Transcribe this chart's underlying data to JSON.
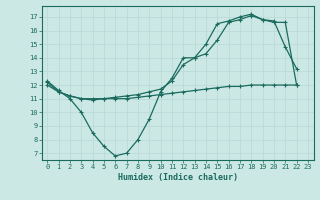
{
  "xlabel": "Humidex (Indice chaleur)",
  "xlim": [
    -0.5,
    23.5
  ],
  "ylim": [
    6.5,
    17.8
  ],
  "yticks": [
    7,
    8,
    9,
    10,
    11,
    12,
    13,
    14,
    15,
    16,
    17
  ],
  "xticks": [
    0,
    1,
    2,
    3,
    4,
    5,
    6,
    7,
    8,
    9,
    10,
    11,
    12,
    13,
    14,
    15,
    16,
    17,
    18,
    19,
    20,
    21,
    22,
    23
  ],
  "bg_color": "#cce8e5",
  "line_color": "#1a6b5e",
  "grid_color": "#b8d8d5",
  "line1_x": [
    0,
    1,
    2,
    3,
    4,
    5,
    6,
    7,
    8,
    9,
    10,
    11,
    12,
    13,
    14,
    15,
    16,
    17,
    18,
    19,
    20,
    21,
    22
  ],
  "line1_y": [
    12.3,
    11.6,
    11.0,
    10.0,
    8.5,
    7.5,
    6.8,
    7.0,
    8.0,
    9.5,
    11.5,
    12.5,
    14.0,
    14.0,
    15.0,
    16.5,
    16.7,
    17.0,
    17.2,
    16.8,
    16.7,
    14.8,
    13.2
  ],
  "line2_x": [
    0,
    1,
    2,
    3,
    4,
    5,
    6,
    7,
    8,
    9,
    10,
    11,
    12,
    13,
    14,
    15,
    16,
    17,
    18,
    19,
    20,
    21,
    22
  ],
  "line2_y": [
    12.2,
    11.5,
    11.2,
    11.0,
    10.9,
    11.0,
    11.1,
    11.2,
    11.3,
    11.5,
    11.7,
    12.3,
    13.5,
    14.0,
    14.3,
    15.3,
    16.6,
    16.8,
    17.1,
    16.8,
    16.6,
    16.6,
    12.0
  ],
  "line3_x": [
    0,
    1,
    2,
    3,
    4,
    5,
    6,
    7,
    8,
    9,
    10,
    11,
    12,
    13,
    14,
    15,
    16,
    17,
    18,
    19,
    20,
    21,
    22
  ],
  "line3_y": [
    12.0,
    11.5,
    11.2,
    11.0,
    11.0,
    11.0,
    11.0,
    11.0,
    11.1,
    11.2,
    11.3,
    11.4,
    11.5,
    11.6,
    11.7,
    11.8,
    11.9,
    11.9,
    12.0,
    12.0,
    12.0,
    12.0,
    12.0
  ]
}
